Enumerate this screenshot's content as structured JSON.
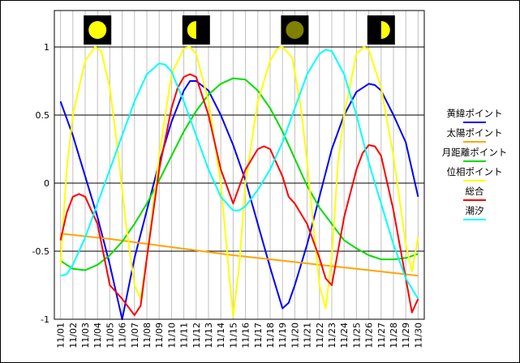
{
  "chart_data": {
    "type": "line",
    "title": "",
    "xlabel": "",
    "ylabel": "",
    "ylim": [
      -1,
      1.25
    ],
    "yticks": [
      1,
      0.5,
      0,
      -0.5,
      -1
    ],
    "ytick_labels": [
      "1",
      "0.5",
      "0",
      "-0.5",
      "-1"
    ],
    "grid": true,
    "legend_position": "right",
    "categories": [
      "11/01",
      "11/02",
      "11/03",
      "11/04",
      "11/05",
      "11/06",
      "11/07",
      "11/08",
      "11/09",
      "11/10",
      "11/11",
      "11/12",
      "11/13",
      "11/14",
      "11/15",
      "11/16",
      "11/17",
      "11/18",
      "11/19",
      "11/20",
      "11/21",
      "11/22",
      "11/23",
      "11/24",
      "11/25",
      "11/26",
      "11/27",
      "11/28",
      "11/29",
      "11/30"
    ],
    "moon_phases": [
      {
        "day": "11/04",
        "phase": "full-moon-icon",
        "color": "#ffff00"
      },
      {
        "day": "11/12",
        "phase": "last-quarter-icon",
        "color": "#ffff00"
      },
      {
        "day": "11/20",
        "phase": "new-moon-icon",
        "color": "#808000"
      },
      {
        "day": "11/27",
        "phase": "first-quarter-icon",
        "color": "#ffff00"
      }
    ],
    "series": [
      {
        "name": "黄緯ポイント",
        "color": "#0000ff",
        "x": [
          1,
          2,
          3,
          4,
          5,
          6,
          7,
          8,
          9,
          10,
          11,
          11.5,
          12,
          13,
          14,
          15,
          16,
          17,
          18,
          19,
          19.5,
          20,
          21,
          22,
          23,
          24,
          25,
          26,
          26.5,
          27,
          28,
          29,
          30
        ],
        "values": [
          0.6,
          0.35,
          0.05,
          -0.25,
          -0.6,
          -1.0,
          -0.55,
          -0.2,
          0.15,
          0.45,
          0.68,
          0.75,
          0.75,
          0.68,
          0.5,
          0.28,
          0.02,
          -0.3,
          -0.62,
          -0.92,
          -0.88,
          -0.75,
          -0.45,
          -0.1,
          0.25,
          0.5,
          0.67,
          0.73,
          0.72,
          0.68,
          0.5,
          0.3,
          -0.1
        ]
      },
      {
        "name": "太陽ポイント",
        "color": "#ffa500",
        "x": [
          1,
          5,
          10,
          15,
          20,
          25,
          30
        ],
        "values": [
          -0.37,
          -0.41,
          -0.47,
          -0.53,
          -0.58,
          -0.63,
          -0.68
        ]
      },
      {
        "name": "月距離ポイント",
        "color": "#00dd00",
        "x": [
          1,
          2,
          3,
          4,
          5,
          6,
          7,
          8,
          9,
          10,
          11,
          12,
          13,
          14,
          15,
          16,
          17,
          18,
          19,
          20,
          21,
          22,
          23,
          24,
          25,
          26,
          27,
          28,
          29,
          30
        ],
        "values": [
          -0.57,
          -0.63,
          -0.64,
          -0.6,
          -0.53,
          -0.43,
          -0.3,
          -0.15,
          0.02,
          0.2,
          0.38,
          0.53,
          0.65,
          0.73,
          0.77,
          0.76,
          0.68,
          0.55,
          0.38,
          0.18,
          -0.02,
          -0.18,
          -0.3,
          -0.42,
          -0.48,
          -0.53,
          -0.56,
          -0.56,
          -0.55,
          -0.52
        ]
      },
      {
        "name": "位相ポイント",
        "color": "#ffff00",
        "x": [
          1,
          1.5,
          2,
          3,
          3.8,
          4.3,
          5,
          5.7,
          6.3,
          7,
          7.5,
          8,
          9,
          10,
          11,
          11.5,
          12,
          13,
          14,
          14.5,
          15,
          15.5,
          16,
          17,
          18,
          18.6,
          19,
          19.8,
          20.5,
          21,
          21.5,
          22,
          22.5,
          23,
          23.5,
          24,
          25,
          25.6,
          26,
          27,
          28,
          29,
          29.5,
          30
        ],
        "values": [
          -0.6,
          0.1,
          0.5,
          0.9,
          1.0,
          0.97,
          0.7,
          0.2,
          -0.3,
          -0.75,
          -0.85,
          -0.55,
          0.2,
          0.8,
          0.99,
          1.0,
          0.95,
          0.6,
          0.0,
          -0.5,
          -0.98,
          -0.6,
          0.0,
          0.6,
          0.9,
          0.99,
          1.0,
          0.92,
          0.55,
          0.15,
          -0.3,
          -0.75,
          -0.92,
          -0.55,
          0.15,
          0.5,
          0.95,
          1.0,
          0.98,
          0.7,
          0.2,
          -0.45,
          -0.65,
          -0.4
        ]
      },
      {
        "name": "総合",
        "color": "#ff0000",
        "x": [
          1,
          1.5,
          2,
          2.5,
          3,
          4,
          5,
          6,
          7,
          7.5,
          8,
          9,
          10,
          10.5,
          11,
          11.5,
          12,
          13,
          14,
          15,
          16,
          17,
          17.5,
          18,
          19,
          19.5,
          20,
          21,
          22,
          22.5,
          23,
          24,
          25,
          25.5,
          26,
          26.5,
          27,
          28,
          29,
          29.5,
          30
        ],
        "values": [
          -0.42,
          -0.22,
          -0.1,
          -0.08,
          -0.1,
          -0.3,
          -0.75,
          -0.85,
          -0.97,
          -0.9,
          -0.55,
          0.1,
          0.55,
          0.7,
          0.78,
          0.8,
          0.78,
          0.5,
          0.1,
          -0.15,
          0.1,
          0.25,
          0.27,
          0.25,
          0.05,
          -0.1,
          -0.15,
          -0.3,
          -0.55,
          -0.7,
          -0.75,
          -0.25,
          0.1,
          0.22,
          0.28,
          0.27,
          0.2,
          -0.2,
          -0.7,
          -0.95,
          -0.85
        ]
      },
      {
        "name": "潮汐",
        "color": "#00ffff",
        "x": [
          1,
          1.5,
          2,
          3,
          4,
          5,
          6,
          7,
          8,
          9,
          9.5,
          10,
          11,
          12,
          13,
          14,
          15,
          15.5,
          16,
          17,
          18,
          19,
          20,
          21,
          22,
          22.5,
          23,
          24,
          25,
          26,
          27,
          28,
          29,
          30
        ],
        "values": [
          -0.68,
          -0.67,
          -0.6,
          -0.4,
          -0.15,
          0.1,
          0.35,
          0.6,
          0.8,
          0.88,
          0.87,
          0.82,
          0.6,
          0.35,
          0.1,
          -0.1,
          -0.2,
          -0.2,
          -0.17,
          -0.05,
          0.1,
          0.3,
          0.55,
          0.8,
          0.95,
          0.98,
          0.97,
          0.8,
          0.5,
          0.15,
          -0.15,
          -0.45,
          -0.7,
          -0.85
        ]
      }
    ]
  }
}
